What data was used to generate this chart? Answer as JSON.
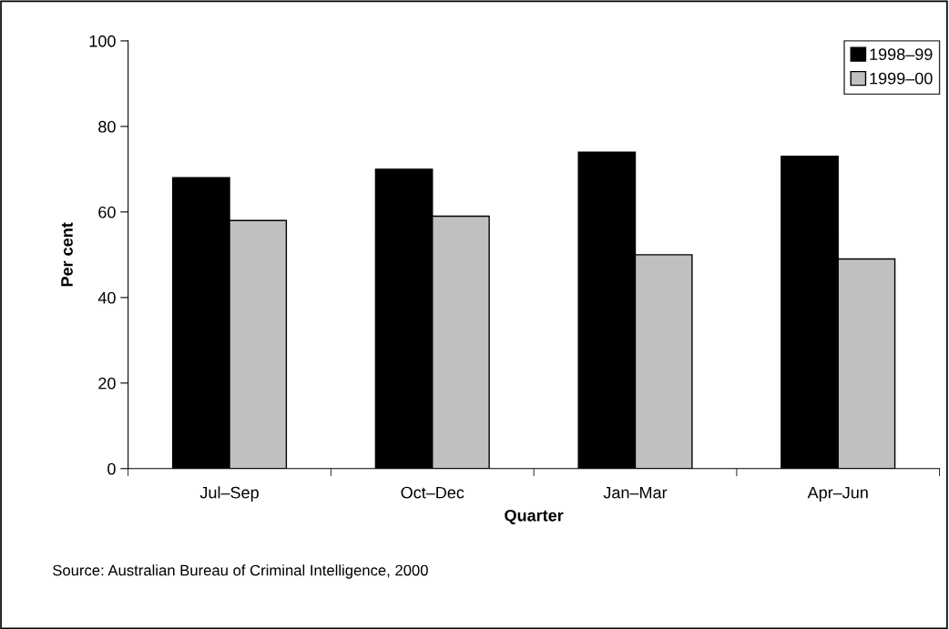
{
  "chart_data": {
    "type": "bar",
    "xlabel": "Quarter",
    "ylabel": "Per cent",
    "categories": [
      "Jul–Sep",
      "Oct–Dec",
      "Jan–Mar",
      "Apr–Jun"
    ],
    "series": [
      {
        "name": "1998–99",
        "color": "#000000",
        "values": [
          68,
          70,
          74,
          73
        ]
      },
      {
        "name": "1999–00",
        "color": "#c0c0c0",
        "values": [
          58,
          59,
          50,
          49
        ]
      }
    ],
    "ylim": [
      0,
      100
    ],
    "yticks": [
      0,
      20,
      40,
      60,
      80,
      100
    ],
    "grid": false,
    "legend": "top right",
    "annotations": [
      "Source: Australian Bureau of Criminal Intelligence, 2000"
    ]
  }
}
